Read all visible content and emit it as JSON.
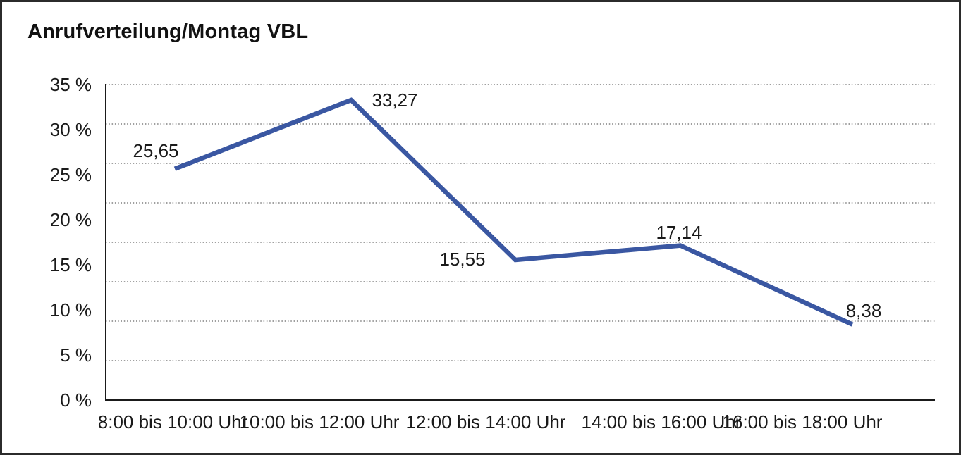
{
  "window": {
    "background": "#ffffff",
    "border_color": "#2b2b2b"
  },
  "chart": {
    "title": "Anrufverteilung/Montag VBL"
  },
  "chart_data": {
    "type": "line",
    "title": "Anrufverteilung/Montag VBL",
    "categories": [
      "8:00 bis 10:00 Uhr",
      "10:00 bis 12:00 Uhr",
      "12:00 bis 14:00 Uhr",
      "14:00 bis 16:00 Uhr",
      "16:00 bis 18:00 Uhr"
    ],
    "values": [
      25.65,
      33.27,
      15.55,
      17.14,
      8.38
    ],
    "data_labels": [
      "25,65",
      "33,27",
      "15,55",
      "17,14",
      "8,38"
    ],
    "y_ticks": [
      "35 %",
      "30 %",
      "25 %",
      "20 %",
      "15 %",
      "10 %",
      "5 %",
      "0 %"
    ],
    "y_tick_step": 5,
    "ylim": [
      0,
      35
    ],
    "gridline_divisions": 8,
    "grid": "horizontal-dotted",
    "legend": "none",
    "markers": "none",
    "line_color": "#3A57A2",
    "grid_color": "#3f3f3f",
    "axis_color": "#1a1a1a",
    "text_color": "#1a1a1a",
    "xlabel": "",
    "ylabel": ""
  }
}
